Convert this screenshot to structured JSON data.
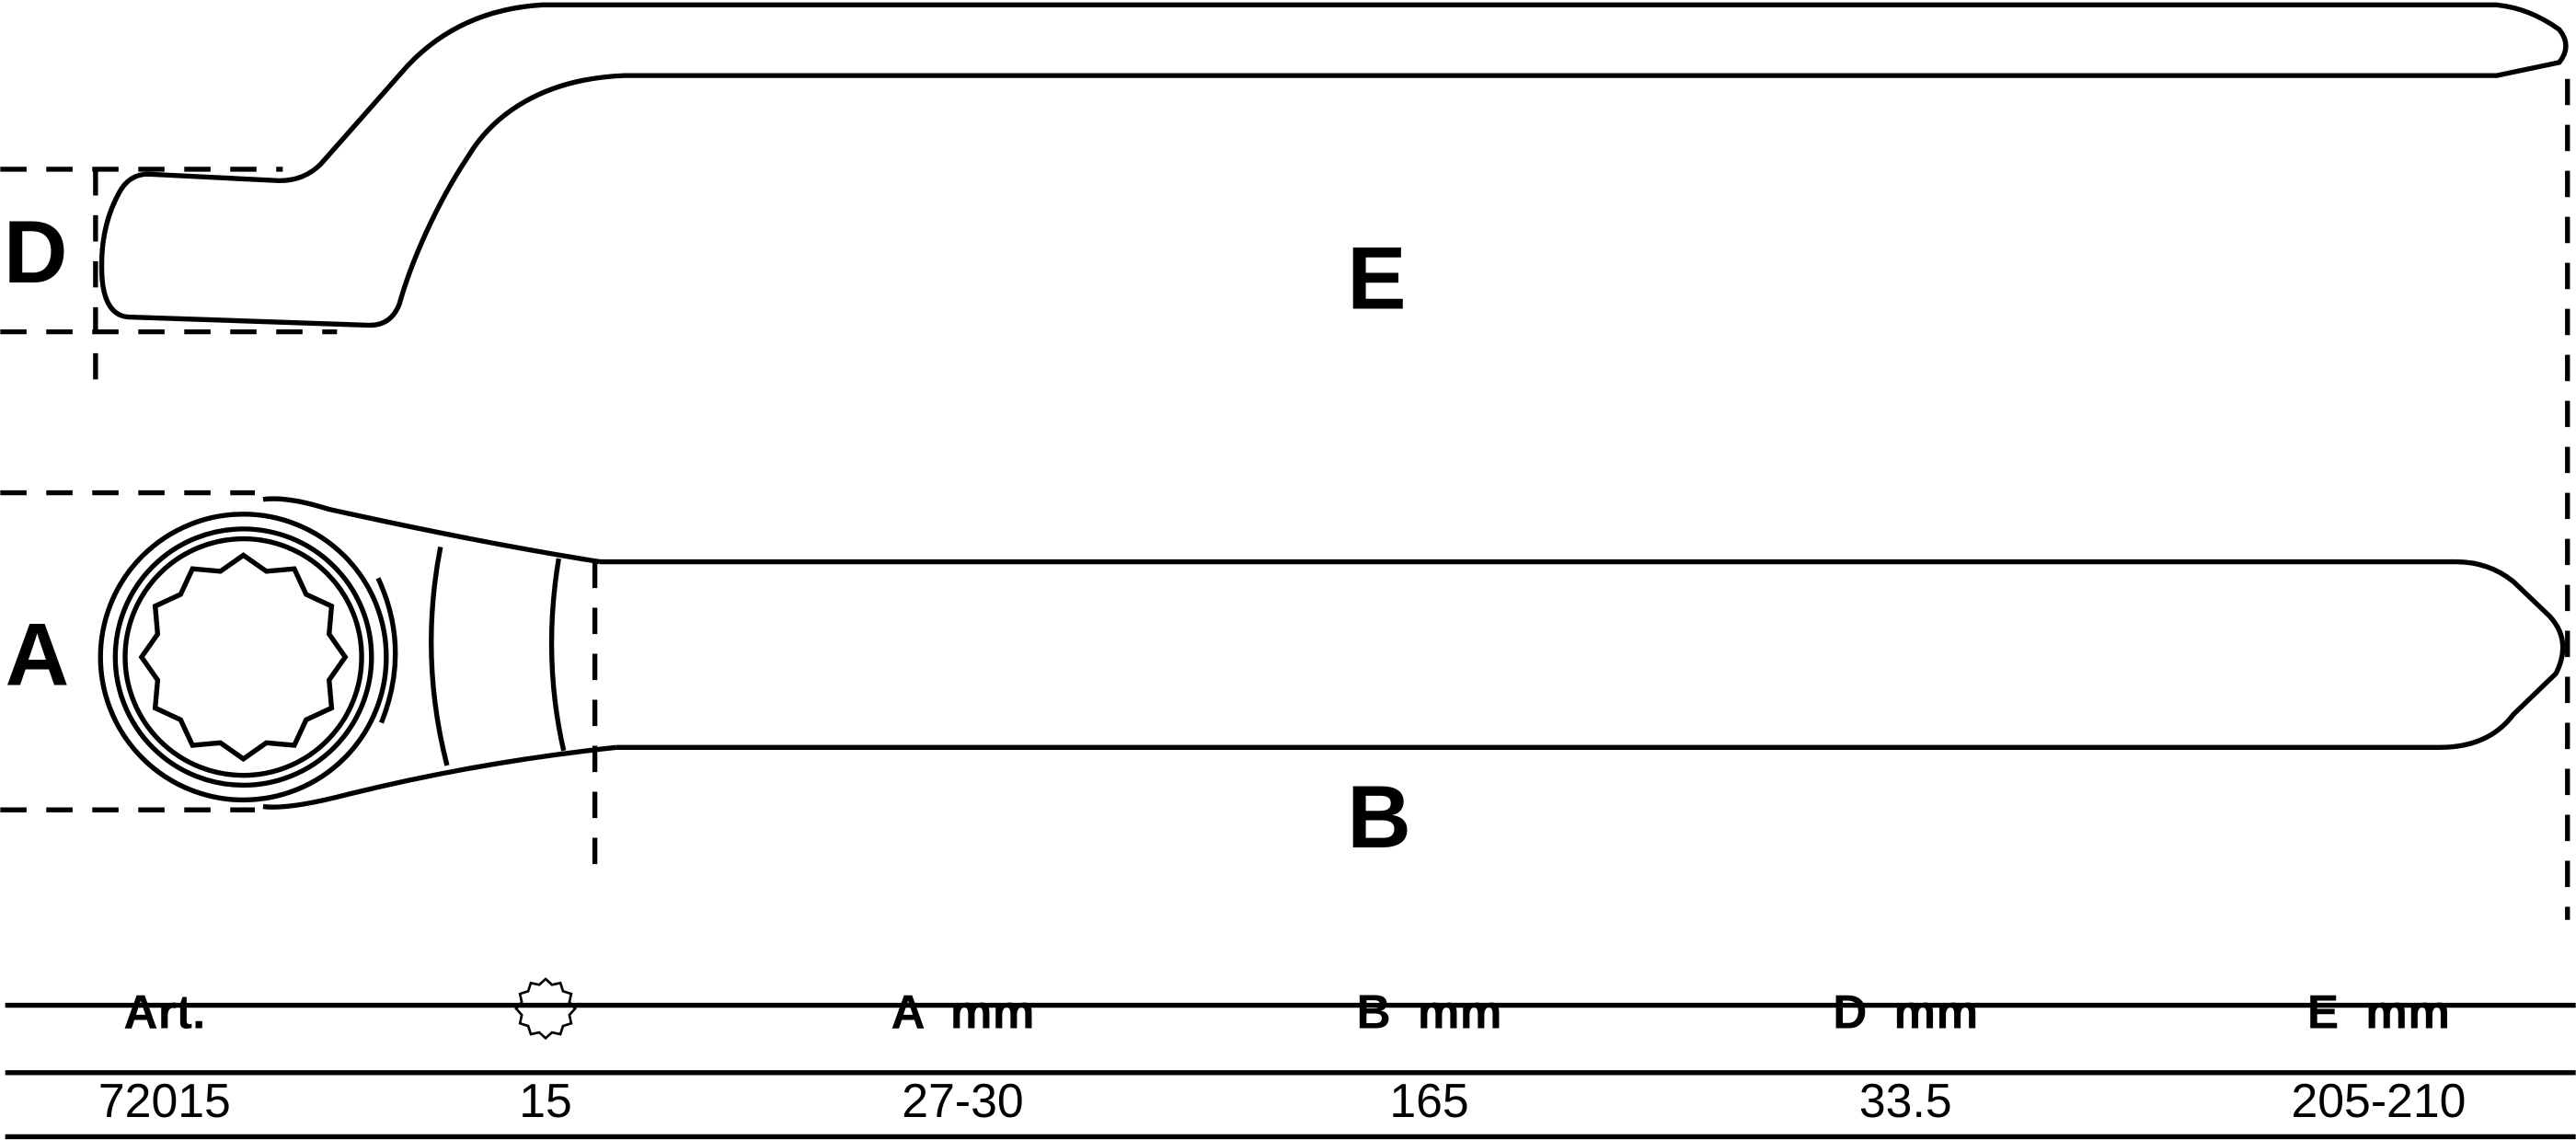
{
  "drawing": {
    "labels": {
      "D": "D",
      "E": "E",
      "A": "A",
      "B": "B"
    }
  },
  "table": {
    "headers": [
      "Art.",
      "",
      "A  mm",
      "B  mm",
      "D  mm",
      "E  mm"
    ],
    "header_icon": "12-point-star-icon",
    "rows": [
      [
        "72015",
        "15",
        "27-30",
        "165",
        "33.5",
        "205-210"
      ]
    ]
  }
}
